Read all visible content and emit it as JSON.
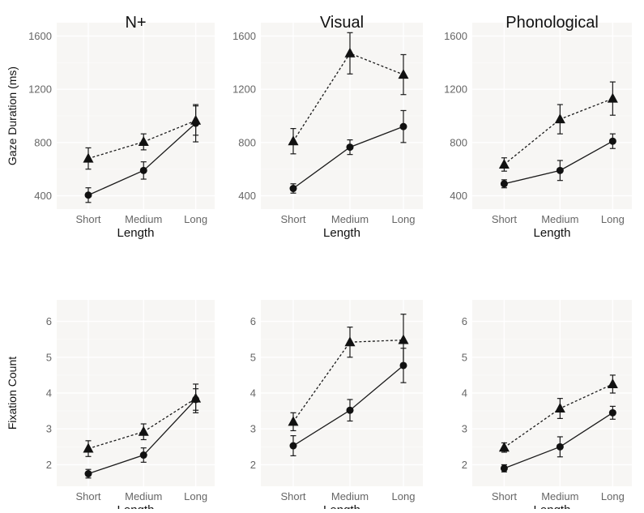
{
  "chart_data": [
    {
      "type": "line",
      "title": "N+",
      "xlabel": "Length",
      "ylabel": "Gaze Duration (ms)",
      "categories": [
        "Short",
        "Medium",
        "Long"
      ],
      "yticks": [
        400,
        800,
        1200,
        1600
      ],
      "ylim": [
        300,
        1700
      ],
      "grid": true,
      "series": [
        {
          "marker": "triangle",
          "line": "dashed",
          "values": [
            680,
            805,
            965
          ],
          "err": [
            80,
            60,
            110
          ]
        },
        {
          "marker": "circle",
          "line": "solid",
          "values": [
            405,
            590,
            945
          ],
          "err": [
            55,
            65,
            140
          ]
        }
      ]
    },
    {
      "type": "line",
      "title": "Visual",
      "xlabel": "Length",
      "ylabel": "",
      "categories": [
        "Short",
        "Medium",
        "Long"
      ],
      "yticks": [
        400,
        800,
        1200,
        1600
      ],
      "ylim": [
        300,
        1700
      ],
      "grid": true,
      "series": [
        {
          "marker": "triangle",
          "line": "dashed",
          "values": [
            810,
            1470,
            1310
          ],
          "err": [
            95,
            155,
            150
          ]
        },
        {
          "marker": "circle",
          "line": "solid",
          "values": [
            455,
            765,
            920
          ],
          "err": [
            35,
            55,
            120
          ]
        }
      ]
    },
    {
      "type": "line",
      "title": "Phonological",
      "xlabel": "Length",
      "ylabel": "",
      "categories": [
        "Short",
        "Medium",
        "Long"
      ],
      "yticks": [
        400,
        800,
        1200,
        1600
      ],
      "ylim": [
        300,
        1700
      ],
      "grid": true,
      "series": [
        {
          "marker": "triangle",
          "line": "dashed",
          "values": [
            635,
            975,
            1130
          ],
          "err": [
            50,
            110,
            125
          ]
        },
        {
          "marker": "circle",
          "line": "solid",
          "values": [
            490,
            590,
            810
          ],
          "err": [
            30,
            75,
            55
          ]
        }
      ]
    },
    {
      "type": "line",
      "title": "",
      "xlabel": "Length",
      "ylabel": "Fixation Count",
      "categories": [
        "Short",
        "Medium",
        "Long"
      ],
      "yticks": [
        2,
        3,
        4,
        5,
        6
      ],
      "ylim": [
        1.4,
        6.6
      ],
      "grid": true,
      "series": [
        {
          "marker": "triangle",
          "line": "dashed",
          "values": [
            2.45,
            2.92,
            3.85
          ],
          "err": [
            0.22,
            0.22,
            0.4
          ]
        },
        {
          "marker": "circle",
          "line": "solid",
          "values": [
            1.75,
            2.27,
            3.82
          ],
          "err": [
            0.12,
            0.2,
            0.3
          ]
        }
      ]
    },
    {
      "type": "line",
      "title": "",
      "xlabel": "Length",
      "ylabel": "",
      "categories": [
        "Short",
        "Medium",
        "Long"
      ],
      "yticks": [
        2,
        3,
        4,
        5,
        6
      ],
      "ylim": [
        1.4,
        6.6
      ],
      "grid": true,
      "series": [
        {
          "marker": "triangle",
          "line": "dashed",
          "values": [
            3.2,
            5.42,
            5.48
          ],
          "err": [
            0.25,
            0.42,
            0.72
          ]
        },
        {
          "marker": "circle",
          "line": "solid",
          "values": [
            2.53,
            3.52,
            4.77
          ],
          "err": [
            0.28,
            0.3,
            0.48
          ]
        }
      ]
    },
    {
      "type": "line",
      "title": "",
      "xlabel": "Length",
      "ylabel": "",
      "categories": [
        "Short",
        "Medium",
        "Long"
      ],
      "yticks": [
        2,
        3,
        4,
        5,
        6
      ],
      "ylim": [
        1.4,
        6.6
      ],
      "grid": true,
      "series": [
        {
          "marker": "triangle",
          "line": "dashed",
          "values": [
            2.48,
            3.57,
            4.25
          ],
          "err": [
            0.13,
            0.28,
            0.25
          ]
        },
        {
          "marker": "circle",
          "line": "solid",
          "values": [
            1.9,
            2.5,
            3.45
          ],
          "err": [
            0.1,
            0.28,
            0.18
          ]
        }
      ]
    }
  ]
}
